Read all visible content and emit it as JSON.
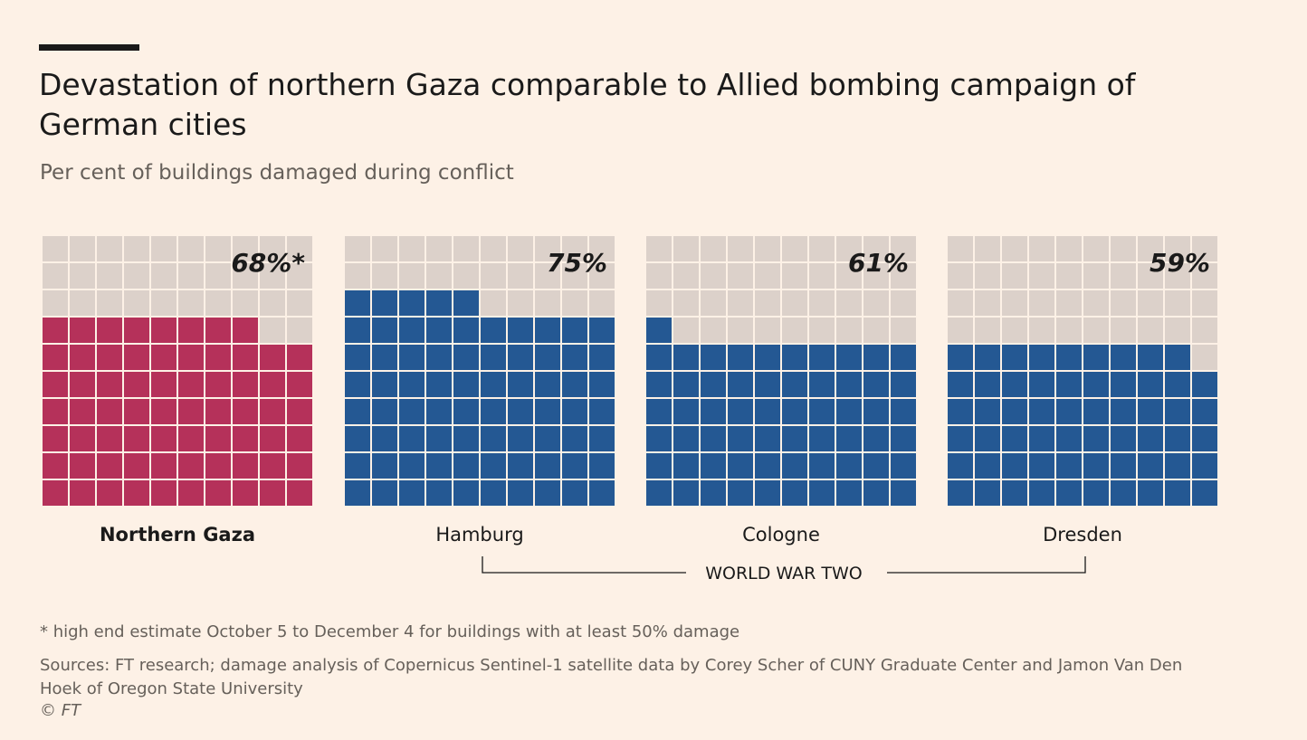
{
  "title": "Devastation of northern Gaza comparable to Allied bombing campaign of German cities",
  "subtitle": "Per cent of buildings damaged during conflict",
  "chart_data": {
    "type": "waffle",
    "unit": "per cent of buildings damaged",
    "grid": [
      10,
      10
    ],
    "categories": [
      "Northern Gaza",
      "Hamburg",
      "Cologne",
      "Dresden"
    ],
    "values": [
      68,
      75,
      61,
      59
    ],
    "labels": [
      "68%*",
      "75%",
      "61%",
      "59%"
    ],
    "group_label": "WORLD WAR TWO",
    "group_members": [
      "Hamburg",
      "Cologne",
      "Dresden"
    ],
    "highlight": "Northern Gaza",
    "colors": {
      "highlight": "#b5315a",
      "filled": "#245893",
      "empty": "#dcd1ca",
      "cell_border": "#fdf1e6",
      "background": "#fdf1e6"
    }
  },
  "footnote": "* high end estimate October 5 to December 4 for buildings with at least 50% damage",
  "sources": "Sources: FT research; damage analysis of Copernicus Sentinel-1 satellite data by Corey Scher of CUNY Graduate Center and Jamon Van Den Hoek of Oregon State University",
  "copyright": {
    "symbol": "©",
    "owner": "FT"
  }
}
